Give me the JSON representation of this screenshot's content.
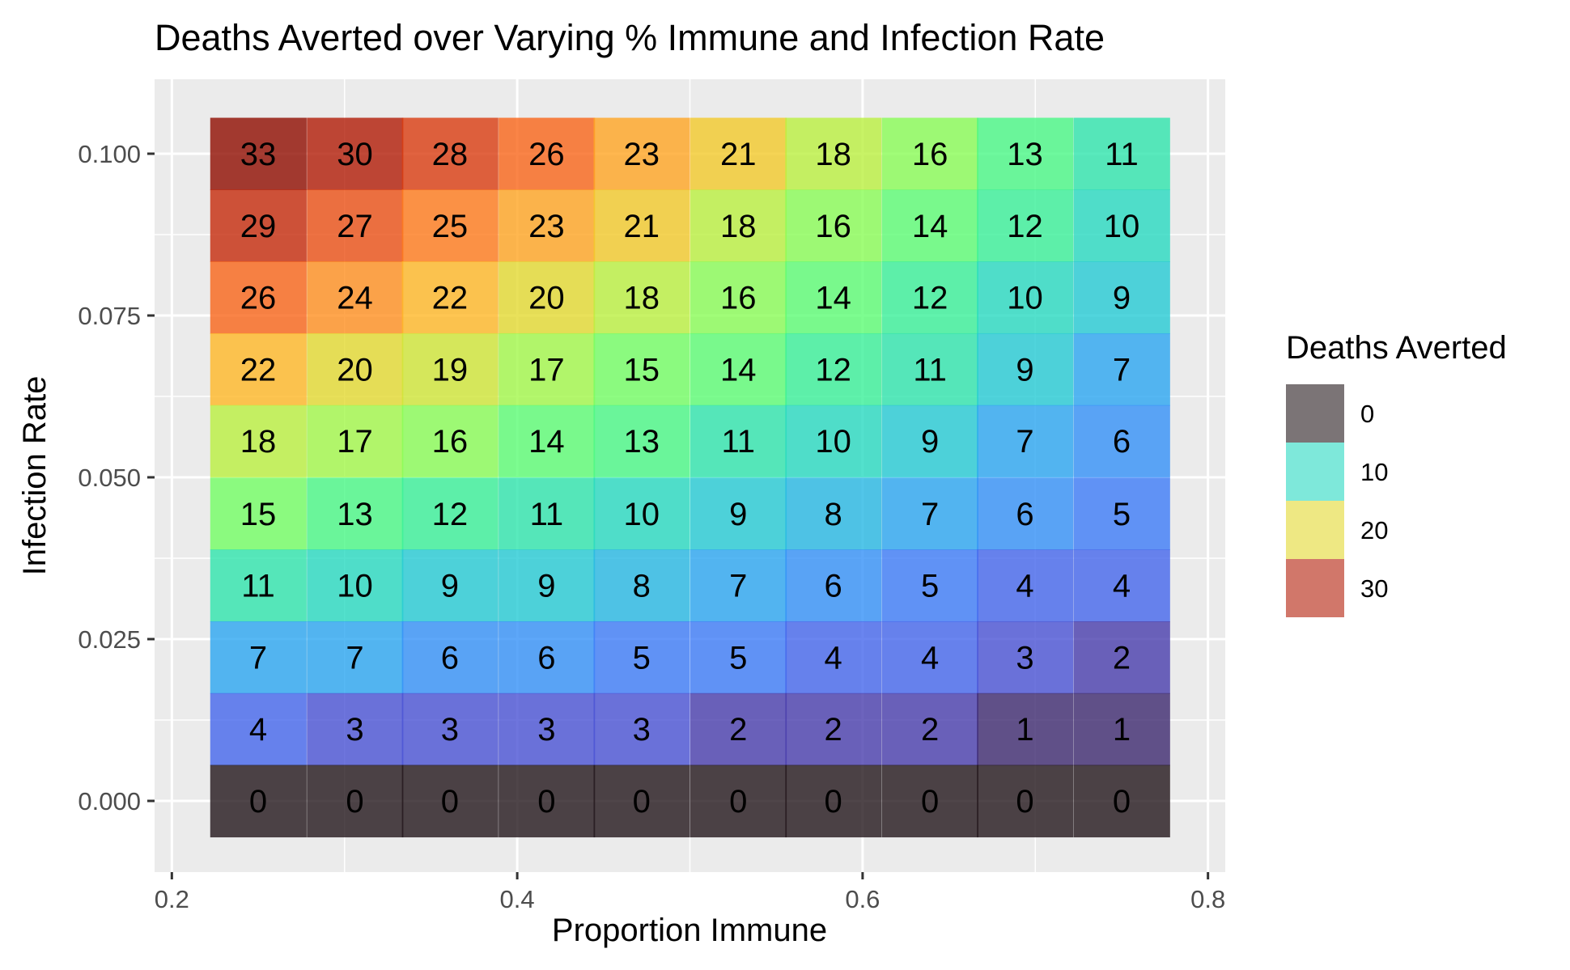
{
  "chart_data": {
    "type": "heatmap",
    "title": "Deaths Averted over Varying % Immune and Infection Rate",
    "xlabel": "Proportion Immune",
    "ylabel": "Infection Rate",
    "x": [
      0.25,
      0.306,
      0.361,
      0.417,
      0.472,
      0.528,
      0.583,
      0.639,
      0.694,
      0.75
    ],
    "y": [
      0.1,
      0.0889,
      0.0778,
      0.0667,
      0.0556,
      0.0444,
      0.0333,
      0.0222,
      0.0111,
      0.0
    ],
    "xlim": [
      0.19,
      0.81
    ],
    "ylim": [
      -0.011,
      0.1115
    ],
    "x_ticks": [
      0.2,
      0.4,
      0.6,
      0.8
    ],
    "x_tick_labels": [
      "0.2",
      "0.4",
      "0.6",
      "0.8"
    ],
    "y_ticks": [
      0.0,
      0.025,
      0.05,
      0.075,
      0.1
    ],
    "y_tick_labels": [
      "0.000",
      "0.025",
      "0.050",
      "0.075",
      "0.100"
    ],
    "values": [
      [
        33,
        30,
        28,
        26,
        23,
        21,
        18,
        16,
        13,
        11
      ],
      [
        29,
        27,
        25,
        23,
        21,
        18,
        16,
        14,
        12,
        10
      ],
      [
        26,
        24,
        22,
        20,
        18,
        16,
        14,
        12,
        10,
        9
      ],
      [
        22,
        20,
        19,
        17,
        15,
        14,
        12,
        11,
        9,
        7
      ],
      [
        18,
        17,
        16,
        14,
        13,
        11,
        10,
        9,
        7,
        6
      ],
      [
        15,
        13,
        12,
        11,
        10,
        9,
        8,
        7,
        6,
        5
      ],
      [
        11,
        10,
        9,
        9,
        8,
        7,
        6,
        5,
        4,
        4
      ],
      [
        7,
        7,
        6,
        6,
        5,
        5,
        4,
        4,
        3,
        2
      ],
      [
        4,
        3,
        3,
        3,
        3,
        2,
        2,
        2,
        1,
        1
      ],
      [
        0,
        0,
        0,
        0,
        0,
        0,
        0,
        0,
        0,
        0
      ]
    ],
    "legend": {
      "title": "Deaths Averted",
      "placement": "right",
      "items": [
        {
          "label": "0",
          "value": 0
        },
        {
          "label": "10",
          "value": 10
        },
        {
          "label": "20",
          "value": 20
        },
        {
          "label": "30",
          "value": 30
        }
      ]
    },
    "colorscale": "turbo",
    "fill_opacity": 0.8,
    "panel_background": "#ebebeb",
    "grid": true,
    "grid_color": "#ffffff"
  }
}
